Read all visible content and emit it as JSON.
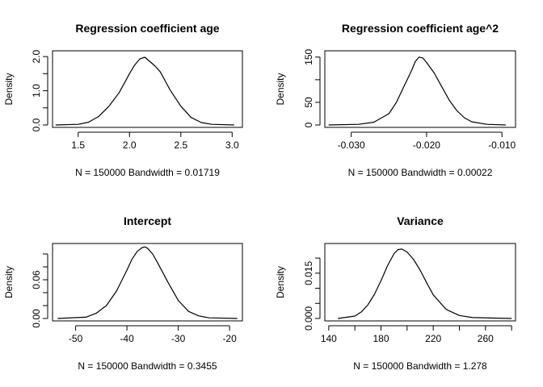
{
  "chart_data": [
    {
      "type": "line",
      "title": "Regression coefficient age",
      "xlabel": "N = 150000   Bandwidth = 0.01719",
      "ylabel": "Density",
      "xlim": [
        1.25,
        3.1
      ],
      "ylim": [
        0,
        2.05
      ],
      "xticks": [
        1.5,
        2.0,
        2.5,
        3.0
      ],
      "xtick_labels": [
        "1.5",
        "2.0",
        "2.5",
        "3.0"
      ],
      "yticks": [
        0.0,
        1.0,
        2.0
      ],
      "ytick_labels": [
        "0.0",
        "1.0",
        "2.0"
      ],
      "ytick_minor": [
        0.5,
        1.5
      ],
      "series": [
        {
          "x": [
            1.28,
            1.5,
            1.6,
            1.7,
            1.8,
            1.9,
            2.0,
            2.05,
            2.1,
            2.15,
            2.2,
            2.25,
            2.3,
            2.4,
            2.5,
            2.6,
            2.7,
            2.8,
            3.02
          ],
          "y": [
            0.0,
            0.02,
            0.08,
            0.25,
            0.55,
            0.95,
            1.5,
            1.75,
            1.93,
            1.98,
            1.85,
            1.72,
            1.55,
            1.0,
            0.55,
            0.22,
            0.07,
            0.02,
            0.0
          ]
        }
      ]
    },
    {
      "type": "line",
      "title": "Regression coefficient age^2",
      "xlabel": "N = 150000   Bandwidth = 0.00022",
      "ylabel": "Density",
      "xlim": [
        -0.0335,
        -0.0082
      ],
      "ylim": [
        0,
        155
      ],
      "xticks": [
        -0.03,
        -0.02,
        -0.01
      ],
      "xtick_labels": [
        "-0.030",
        "-0.020",
        "-0.010"
      ],
      "yticks": [
        0,
        50,
        150
      ],
      "ytick_labels": [
        "0",
        "50",
        "150"
      ],
      "ytick_minor": [
        100
      ],
      "series": [
        {
          "x": [
            -0.033,
            -0.029,
            -0.027,
            -0.025,
            -0.024,
            -0.023,
            -0.022,
            -0.0215,
            -0.021,
            -0.0205,
            -0.02,
            -0.019,
            -0.018,
            -0.017,
            -0.016,
            -0.015,
            -0.014,
            -0.012,
            -0.0095
          ],
          "y": [
            0.0,
            1.5,
            6,
            25,
            50,
            85,
            120,
            140,
            150,
            148,
            138,
            115,
            85,
            55,
            32,
            16,
            7,
            1.5,
            0.0
          ]
        }
      ]
    },
    {
      "type": "line",
      "title": "Intercept",
      "xlabel": "N = 150000   Bandwidth = 0.3455",
      "ylabel": "Density",
      "xlim": [
        -54.5,
        -17.5
      ],
      "ylim": [
        0,
        0.11
      ],
      "xticks": [
        -50,
        -40,
        -30,
        -20
      ],
      "xtick_labels": [
        "-50",
        "-40",
        "-30",
        "-20"
      ],
      "yticks": [
        0.0,
        0.06
      ],
      "ytick_labels": [
        "0.00",
        "0.06"
      ],
      "ytick_minor": [
        0.02,
        0.04,
        0.08,
        0.1
      ],
      "series": [
        {
          "x": [
            -53.5,
            -48,
            -46,
            -44,
            -42,
            -40,
            -39,
            -38,
            -37,
            -36.5,
            -36,
            -35,
            -34,
            -32,
            -30,
            -28,
            -26,
            -24,
            -18.5
          ],
          "y": [
            0.0,
            0.002,
            0.008,
            0.02,
            0.043,
            0.075,
            0.092,
            0.104,
            0.11,
            0.111,
            0.109,
            0.1,
            0.086,
            0.056,
            0.028,
            0.011,
            0.004,
            0.001,
            0.0
          ]
        }
      ]
    },
    {
      "type": "line",
      "title": "Variance",
      "xlabel": "N = 150000   Bandwidth = 1.278",
      "ylabel": "Density",
      "xlim": [
        137,
        283
      ],
      "ylim": [
        0,
        0.0235
      ],
      "xticks": [
        140,
        180,
        220,
        260
      ],
      "xtick_labels": [
        "140",
        "180",
        "220",
        "260"
      ],
      "xtick_minor": [
        160,
        200,
        240,
        280
      ],
      "yticks": [
        0.0,
        0.015
      ],
      "ytick_labels": [
        "0.000",
        "0.015"
      ],
      "ytick_minor": [
        0.005,
        0.01,
        0.02
      ],
      "series": [
        {
          "x": [
            147,
            160,
            165,
            170,
            175,
            180,
            185,
            190,
            193,
            196,
            200,
            205,
            210,
            215,
            220,
            230,
            240,
            250,
            280
          ],
          "y": [
            0.0,
            0.0008,
            0.0022,
            0.0045,
            0.008,
            0.0125,
            0.0175,
            0.0215,
            0.0228,
            0.023,
            0.022,
            0.0195,
            0.016,
            0.0118,
            0.0078,
            0.003,
            0.001,
            0.0003,
            0.0
          ]
        }
      ]
    }
  ]
}
